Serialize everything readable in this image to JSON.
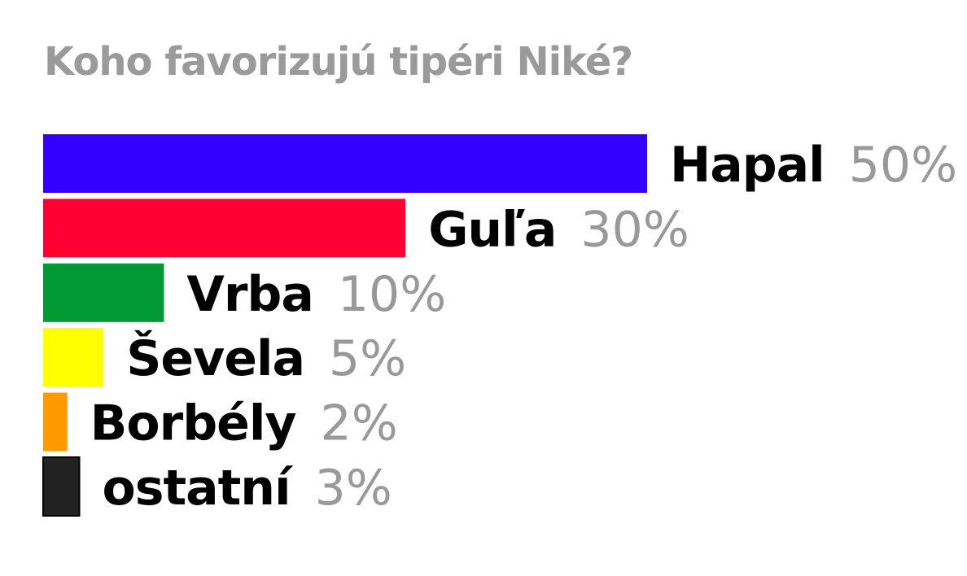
{
  "chart_data": {
    "type": "bar",
    "orientation": "horizontal",
    "title": "Koho favorizujú tipéri Niké?",
    "categories": [
      "Hapal",
      "Guľa",
      "Vrba",
      "Ševela",
      "Borbély",
      "ostatní"
    ],
    "values": [
      50,
      30,
      10,
      5,
      2,
      3
    ],
    "value_labels": [
      "50%",
      "30%",
      "10%",
      "5%",
      "2%",
      "3%"
    ],
    "colors": [
      "#3300ff",
      "#ff0033",
      "#009933",
      "#ffff00",
      "#ff9900",
      "#222222"
    ],
    "label_color": "#000000",
    "value_label_color": "#999999",
    "unit": "%",
    "xlim": [
      0,
      50
    ],
    "grid": false,
    "axes_visible": false
  }
}
